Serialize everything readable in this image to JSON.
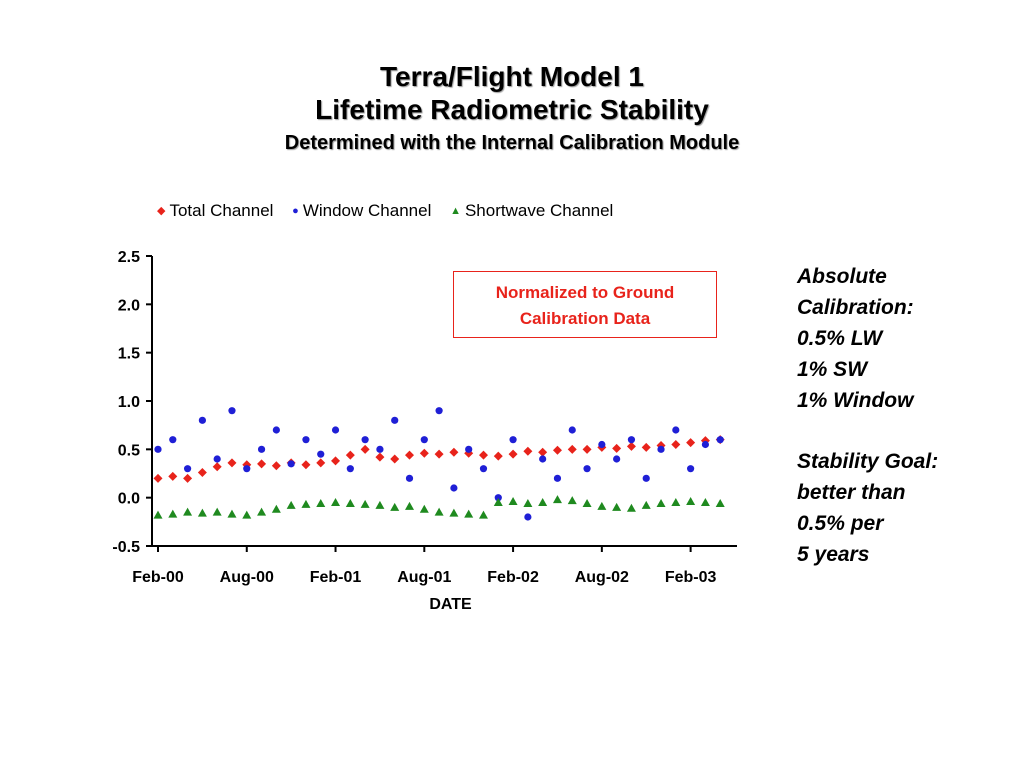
{
  "title": {
    "line1": "Terra/Flight Model 1",
    "line2": "Lifetime Radiometric Stability",
    "line3": "Determined with the Internal Calibration Module"
  },
  "annotation_box": {
    "line1": "Normalized to Ground",
    "line2": "Calibration Data"
  },
  "side_note": {
    "calibration_lines": [
      "Absolute",
      "Calibration:",
      "0.5% LW",
      "1% SW",
      "1% Window"
    ],
    "goal_lines": [
      "Stability Goal:",
      "better than",
      "0.5% per",
      "5 years"
    ]
  },
  "colors": {
    "total": "#e8231b",
    "window": "#1f1fd6",
    "shortwave": "#1f8a1f",
    "annotation": "#e8231b"
  },
  "chart_data": {
    "type": "scatter",
    "xlabel": "DATE",
    "ylabel": "",
    "xlim": [
      "2000-02",
      "2003-05"
    ],
    "ylim": [
      -0.5,
      2.5
    ],
    "y_ticks": [
      "2.5",
      "2.0",
      "1.5",
      "1.0",
      "0.5",
      "0.0",
      "-0.5"
    ],
    "x_ticks": [
      "Feb-00",
      "Aug-00",
      "Feb-01",
      "Aug-01",
      "Feb-02",
      "Aug-02",
      "Feb-03"
    ],
    "x_tick_dates": [
      "2000-02",
      "2000-08",
      "2001-02",
      "2001-08",
      "2002-02",
      "2002-08",
      "2003-02"
    ],
    "grid": false,
    "legend_position": "top",
    "series": [
      {
        "name": "Total Channel",
        "marker": "diamond",
        "points": [
          [
            "2000-02",
            0.2
          ],
          [
            "2000-03",
            0.22
          ],
          [
            "2000-04",
            0.2
          ],
          [
            "2000-05",
            0.26
          ],
          [
            "2000-06",
            0.32
          ],
          [
            "2000-07",
            0.36
          ],
          [
            "2000-08",
            0.34
          ],
          [
            "2000-09",
            0.35
          ],
          [
            "2000-10",
            0.33
          ],
          [
            "2000-11",
            0.36
          ],
          [
            "2000-12",
            0.34
          ],
          [
            "2001-01",
            0.36
          ],
          [
            "2001-02",
            0.38
          ],
          [
            "2001-03",
            0.44
          ],
          [
            "2001-04",
            0.5
          ],
          [
            "2001-05",
            0.42
          ],
          [
            "2001-06",
            0.4
          ],
          [
            "2001-07",
            0.44
          ],
          [
            "2001-08",
            0.46
          ],
          [
            "2001-09",
            0.45
          ],
          [
            "2001-10",
            0.47
          ],
          [
            "2001-11",
            0.46
          ],
          [
            "2001-12",
            0.44
          ],
          [
            "2002-01",
            0.43
          ],
          [
            "2002-02",
            0.45
          ],
          [
            "2002-03",
            0.48
          ],
          [
            "2002-04",
            0.47
          ],
          [
            "2002-05",
            0.49
          ],
          [
            "2002-06",
            0.5
          ],
          [
            "2002-07",
            0.5
          ],
          [
            "2002-08",
            0.52
          ],
          [
            "2002-09",
            0.51
          ],
          [
            "2002-10",
            0.53
          ],
          [
            "2002-11",
            0.52
          ],
          [
            "2002-12",
            0.54
          ],
          [
            "2003-01",
            0.55
          ],
          [
            "2003-02",
            0.57
          ],
          [
            "2003-03",
            0.59
          ],
          [
            "2003-04",
            0.6
          ]
        ]
      },
      {
        "name": "Window Channel",
        "marker": "circle",
        "points": [
          [
            "2000-02",
            0.5
          ],
          [
            "2000-03",
            0.6
          ],
          [
            "2000-04",
            0.3
          ],
          [
            "2000-05",
            0.8
          ],
          [
            "2000-06",
            0.4
          ],
          [
            "2000-07",
            0.9
          ],
          [
            "2000-08",
            0.3
          ],
          [
            "2000-09",
            0.5
          ],
          [
            "2000-10",
            0.7
          ],
          [
            "2000-11",
            0.35
          ],
          [
            "2000-12",
            0.6
          ],
          [
            "2001-01",
            0.45
          ],
          [
            "2001-02",
            0.7
          ],
          [
            "2001-03",
            0.3
          ],
          [
            "2001-04",
            0.6
          ],
          [
            "2001-05",
            0.5
          ],
          [
            "2001-06",
            0.8
          ],
          [
            "2001-07",
            0.2
          ],
          [
            "2001-08",
            0.6
          ],
          [
            "2001-09",
            0.9
          ],
          [
            "2001-10",
            0.1
          ],
          [
            "2001-11",
            0.5
          ],
          [
            "2001-12",
            0.3
          ],
          [
            "2002-01",
            0.0
          ],
          [
            "2002-02",
            0.6
          ],
          [
            "2002-03",
            -0.2
          ],
          [
            "2002-04",
            0.4
          ],
          [
            "2002-05",
            0.2
          ],
          [
            "2002-06",
            0.7
          ],
          [
            "2002-07",
            0.3
          ],
          [
            "2002-08",
            0.55
          ],
          [
            "2002-09",
            0.4
          ],
          [
            "2002-10",
            0.6
          ],
          [
            "2002-11",
            0.2
          ],
          [
            "2002-12",
            0.5
          ],
          [
            "2003-01",
            0.7
          ],
          [
            "2003-02",
            0.3
          ],
          [
            "2003-03",
            0.55
          ],
          [
            "2003-04",
            0.6
          ]
        ]
      },
      {
        "name": "Shortwave Channel",
        "marker": "triangle",
        "points": [
          [
            "2000-02",
            -0.18
          ],
          [
            "2000-03",
            -0.17
          ],
          [
            "2000-04",
            -0.15
          ],
          [
            "2000-05",
            -0.16
          ],
          [
            "2000-06",
            -0.15
          ],
          [
            "2000-07",
            -0.17
          ],
          [
            "2000-08",
            -0.18
          ],
          [
            "2000-09",
            -0.15
          ],
          [
            "2000-10",
            -0.12
          ],
          [
            "2000-11",
            -0.08
          ],
          [
            "2000-12",
            -0.07
          ],
          [
            "2001-01",
            -0.06
          ],
          [
            "2001-02",
            -0.05
          ],
          [
            "2001-03",
            -0.06
          ],
          [
            "2001-04",
            -0.07
          ],
          [
            "2001-05",
            -0.08
          ],
          [
            "2001-06",
            -0.1
          ],
          [
            "2001-07",
            -0.09
          ],
          [
            "2001-08",
            -0.12
          ],
          [
            "2001-09",
            -0.15
          ],
          [
            "2001-10",
            -0.16
          ],
          [
            "2001-11",
            -0.17
          ],
          [
            "2001-12",
            -0.18
          ],
          [
            "2002-01",
            -0.05
          ],
          [
            "2002-02",
            -0.04
          ],
          [
            "2002-03",
            -0.06
          ],
          [
            "2002-04",
            -0.05
          ],
          [
            "2002-05",
            -0.02
          ],
          [
            "2002-06",
            -0.03
          ],
          [
            "2002-07",
            -0.06
          ],
          [
            "2002-08",
            -0.09
          ],
          [
            "2002-09",
            -0.1
          ],
          [
            "2002-10",
            -0.11
          ],
          [
            "2002-11",
            -0.08
          ],
          [
            "2002-12",
            -0.06
          ],
          [
            "2003-01",
            -0.05
          ],
          [
            "2003-02",
            -0.04
          ],
          [
            "2003-03",
            -0.05
          ],
          [
            "2003-04",
            -0.06
          ]
        ]
      }
    ]
  }
}
